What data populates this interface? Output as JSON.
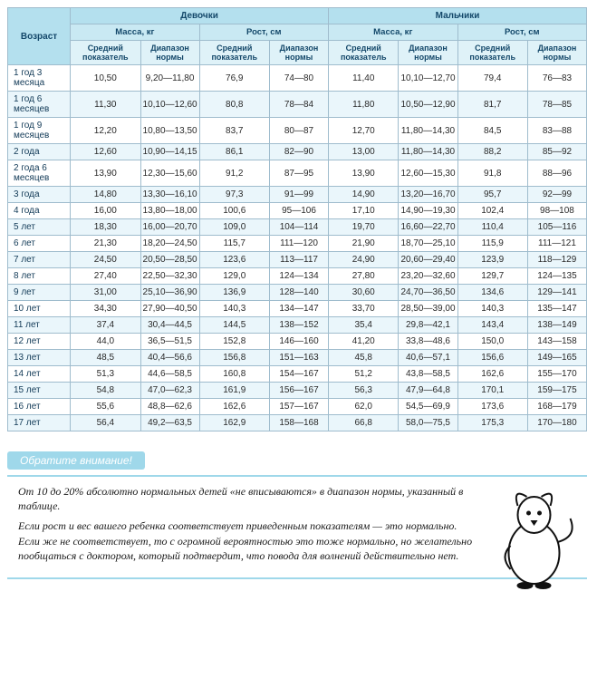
{
  "headings": {
    "age": "Возраст",
    "girls": "Девочки",
    "boys": "Мальчики",
    "mass": "Масса, кг",
    "height": "Рост, см",
    "avg": "Средний показатель",
    "range": "Диапазон нормы"
  },
  "rows": [
    {
      "age": "1 год 3 месяца",
      "g_m_avg": "10,50",
      "g_m_rng": "9,20—11,80",
      "g_h_avg": "76,9",
      "g_h_rng": "74—80",
      "b_m_avg": "11,40",
      "b_m_rng": "10,10—12,70",
      "b_h_avg": "79,4",
      "b_h_rng": "76—83"
    },
    {
      "age": "1 год 6 месяцев",
      "g_m_avg": "11,30",
      "g_m_rng": "10,10—12,60",
      "g_h_avg": "80,8",
      "g_h_rng": "78—84",
      "b_m_avg": "11,80",
      "b_m_rng": "10,50—12,90",
      "b_h_avg": "81,7",
      "b_h_rng": "78—85"
    },
    {
      "age": "1 год 9 месяцев",
      "g_m_avg": "12,20",
      "g_m_rng": "10,80—13,50",
      "g_h_avg": "83,7",
      "g_h_rng": "80—87",
      "b_m_avg": "12,70",
      "b_m_rng": "11,80—14,30",
      "b_h_avg": "84,5",
      "b_h_rng": "83—88"
    },
    {
      "age": "2 года",
      "g_m_avg": "12,60",
      "g_m_rng": "10,90—14,15",
      "g_h_avg": "86,1",
      "g_h_rng": "82—90",
      "b_m_avg": "13,00",
      "b_m_rng": "11,80—14,30",
      "b_h_avg": "88,2",
      "b_h_rng": "85—92"
    },
    {
      "age": "2 года 6 месяцев",
      "g_m_avg": "13,90",
      "g_m_rng": "12,30—15,60",
      "g_h_avg": "91,2",
      "g_h_rng": "87—95",
      "b_m_avg": "13,90",
      "b_m_rng": "12,60—15,30",
      "b_h_avg": "91,8",
      "b_h_rng": "88—96"
    },
    {
      "age": "3 года",
      "g_m_avg": "14,80",
      "g_m_rng": "13,30—16,10",
      "g_h_avg": "97,3",
      "g_h_rng": "91—99",
      "b_m_avg": "14,90",
      "b_m_rng": "13,20—16,70",
      "b_h_avg": "95,7",
      "b_h_rng": "92—99"
    },
    {
      "age": "4 года",
      "g_m_avg": "16,00",
      "g_m_rng": "13,80—18,00",
      "g_h_avg": "100,6",
      "g_h_rng": "95—106",
      "b_m_avg": "17,10",
      "b_m_rng": "14,90—19,30",
      "b_h_avg": "102,4",
      "b_h_rng": "98—108"
    },
    {
      "age": "5 лет",
      "g_m_avg": "18,30",
      "g_m_rng": "16,00—20,70",
      "g_h_avg": "109,0",
      "g_h_rng": "104—114",
      "b_m_avg": "19,70",
      "b_m_rng": "16,60—22,70",
      "b_h_avg": "110,4",
      "b_h_rng": "105—116"
    },
    {
      "age": "6 лет",
      "g_m_avg": "21,30",
      "g_m_rng": "18,20—24,50",
      "g_h_avg": "115,7",
      "g_h_rng": "111—120",
      "b_m_avg": "21,90",
      "b_m_rng": "18,70—25,10",
      "b_h_avg": "115,9",
      "b_h_rng": "111—121"
    },
    {
      "age": "7 лет",
      "g_m_avg": "24,50",
      "g_m_rng": "20,50—28,50",
      "g_h_avg": "123,6",
      "g_h_rng": "113—117",
      "b_m_avg": "24,90",
      "b_m_rng": "20,60—29,40",
      "b_h_avg": "123,9",
      "b_h_rng": "118—129"
    },
    {
      "age": "8 лет",
      "g_m_avg": "27,40",
      "g_m_rng": "22,50—32,30",
      "g_h_avg": "129,0",
      "g_h_rng": "124—134",
      "b_m_avg": "27,80",
      "b_m_rng": "23,20—32,60",
      "b_h_avg": "129,7",
      "b_h_rng": "124—135"
    },
    {
      "age": "9 лет",
      "g_m_avg": "31,00",
      "g_m_rng": "25,10—36,90",
      "g_h_avg": "136,9",
      "g_h_rng": "128—140",
      "b_m_avg": "30,60",
      "b_m_rng": "24,70—36,50",
      "b_h_avg": "134,6",
      "b_h_rng": "129—141"
    },
    {
      "age": "10 лет",
      "g_m_avg": "34,30",
      "g_m_rng": "27,90—40,50",
      "g_h_avg": "140,3",
      "g_h_rng": "134—147",
      "b_m_avg": "33,70",
      "b_m_rng": "28,50—39,00",
      "b_h_avg": "140,3",
      "b_h_rng": "135—147"
    },
    {
      "age": "11 лет",
      "g_m_avg": "37,4",
      "g_m_rng": "30,4—44,5",
      "g_h_avg": "144,5",
      "g_h_rng": "138—152",
      "b_m_avg": "35,4",
      "b_m_rng": "29,8—42,1",
      "b_h_avg": "143,4",
      "b_h_rng": "138—149"
    },
    {
      "age": "12 лет",
      "g_m_avg": "44,0",
      "g_m_rng": "36,5—51,5",
      "g_h_avg": "152,8",
      "g_h_rng": "146—160",
      "b_m_avg": "41,20",
      "b_m_rng": "33,8—48,6",
      "b_h_avg": "150,0",
      "b_h_rng": "143—158"
    },
    {
      "age": "13 лет",
      "g_m_avg": "48,5",
      "g_m_rng": "40,4—56,6",
      "g_h_avg": "156,8",
      "g_h_rng": "151—163",
      "b_m_avg": "45,8",
      "b_m_rng": "40,6—57,1",
      "b_h_avg": "156,6",
      "b_h_rng": "149—165"
    },
    {
      "age": "14 лет",
      "g_m_avg": "51,3",
      "g_m_rng": "44,6—58,5",
      "g_h_avg": "160,8",
      "g_h_rng": "154—167",
      "b_m_avg": "51,2",
      "b_m_rng": "43,8—58,5",
      "b_h_avg": "162,6",
      "b_h_rng": "155—170"
    },
    {
      "age": "15 лет",
      "g_m_avg": "54,8",
      "g_m_rng": "47,0—62,3",
      "g_h_avg": "161,9",
      "g_h_rng": "156—167",
      "b_m_avg": "56,3",
      "b_m_rng": "47,9—64,8",
      "b_h_avg": "170,1",
      "b_h_rng": "159—175"
    },
    {
      "age": "16 лет",
      "g_m_avg": "55,6",
      "g_m_rng": "48,8—62,6",
      "g_h_avg": "162,6",
      "g_h_rng": "157—167",
      "b_m_avg": "62,0",
      "b_m_rng": "54,5—69,9",
      "b_h_avg": "173,6",
      "b_h_rng": "168—179"
    },
    {
      "age": "17 лет",
      "g_m_avg": "56,4",
      "g_m_rng": "49,2—63,5",
      "g_h_avg": "162,9",
      "g_h_rng": "158—168",
      "b_m_avg": "66,8",
      "b_m_rng": "58,0—75,5",
      "b_h_avg": "175,3",
      "b_h_rng": "170—180"
    }
  ],
  "callout": {
    "heading": "Обратите внимание!",
    "p1": "От 10 до 20% абсолютно нормальных детей «не вписываются» в диапазон нормы, указанный в таблице.",
    "p2": "Если рост и вес вашего ребенка соответствует приведенным показателям — это нормально. Если же не соответствует, то с огромной вероятностью это тоже нормально, но желательно пообщаться с доктором, который подтвердит, что повода для волнений действительно нет."
  },
  "styling": {
    "header_bg_1": "#b4e0ee",
    "header_bg_2": "#c9e9f3",
    "header_bg_3": "#dff2f8",
    "row_alt_bg": "#eaf6fb",
    "border_color": "#9fbccd",
    "text_color": "#14486a"
  }
}
